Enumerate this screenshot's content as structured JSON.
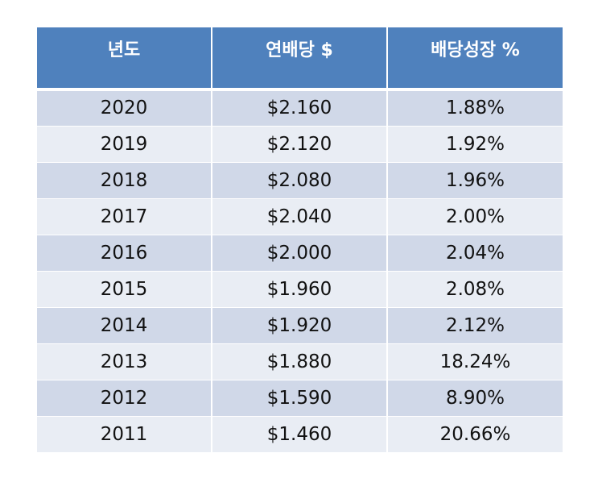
{
  "table": {
    "headers": [
      "년도",
      "연배당 $",
      "배당성장 %"
    ],
    "rows": [
      [
        "2020",
        "$2.160",
        "1.88%"
      ],
      [
        "2019",
        "$2.120",
        "1.92%"
      ],
      [
        "2018",
        "$2.080",
        "1.96%"
      ],
      [
        "2017",
        "$2.040",
        "2.00%"
      ],
      [
        "2016",
        "$2.000",
        "2.04%"
      ],
      [
        "2015",
        "$1.960",
        "2.08%"
      ],
      [
        "2014",
        "$1.920",
        "2.12%"
      ],
      [
        "2013",
        "$1.880",
        "18.24%"
      ],
      [
        "2012",
        "$1.590",
        "8.90%"
      ],
      [
        "2011",
        "$1.460",
        "20.66%"
      ]
    ]
  },
  "colors": {
    "header_bg": "#4f81bd",
    "row_odd_bg": "#d0d8e8",
    "row_even_bg": "#e9edf4"
  }
}
